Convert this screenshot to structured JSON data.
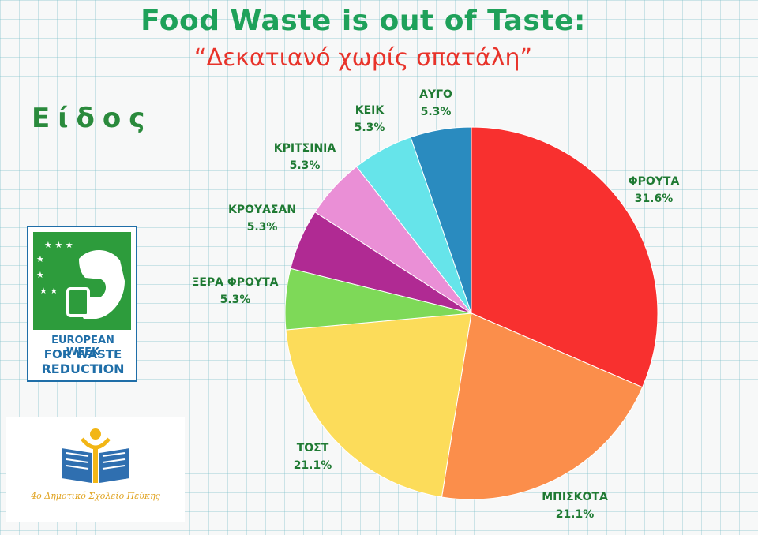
{
  "header": {
    "title": "Food Waste is out of Taste:",
    "subtitle": "“Δεκατιανό χωρίς σπατάλη”",
    "section": "Είδος"
  },
  "logos": {
    "ewwr": {
      "line1": "EUROPEAN WEEK",
      "line2": "FOR WASTE",
      "line3": "REDUCTION"
    },
    "school": {
      "name": "4ο Δημοτικό Σχολείο Πεύκης"
    }
  },
  "chart_data": {
    "type": "pie",
    "title": "Είδος",
    "start_angle_deg": 0,
    "direction": "clockwise",
    "slices": [
      {
        "label": "ΦΡΟΥΤΑ",
        "value": 31.6,
        "display": "31.6%",
        "color": "#f8302f"
      },
      {
        "label": "ΜΠΙΣΚΟΤΑ",
        "value": 21.1,
        "display": "21.1%",
        "color": "#fb8e4b"
      },
      {
        "label": "ΤΟΣΤ",
        "value": 21.1,
        "display": "21.1%",
        "color": "#fcdc5a"
      },
      {
        "label": "ΞΕΡΑ ΦΡΟΥΤΑ",
        "value": 5.3,
        "display": "5.3%",
        "color": "#7ed958"
      },
      {
        "label": "ΚΡΟΥΑΣΑΝ",
        "value": 5.3,
        "display": "5.3%",
        "color": "#b02a93"
      },
      {
        "label": "ΚΡΙΤΣΙΝΙΑ",
        "value": 5.3,
        "display": "5.3%",
        "color": "#ea8fd6"
      },
      {
        "label": "ΚΕΙΚ",
        "value": 5.3,
        "display": "5.3%",
        "color": "#66e4ea"
      },
      {
        "label": "ΑΥΓΟ",
        "value": 5.3,
        "display": "5.3%",
        "color": "#2a8bbf"
      }
    ]
  }
}
